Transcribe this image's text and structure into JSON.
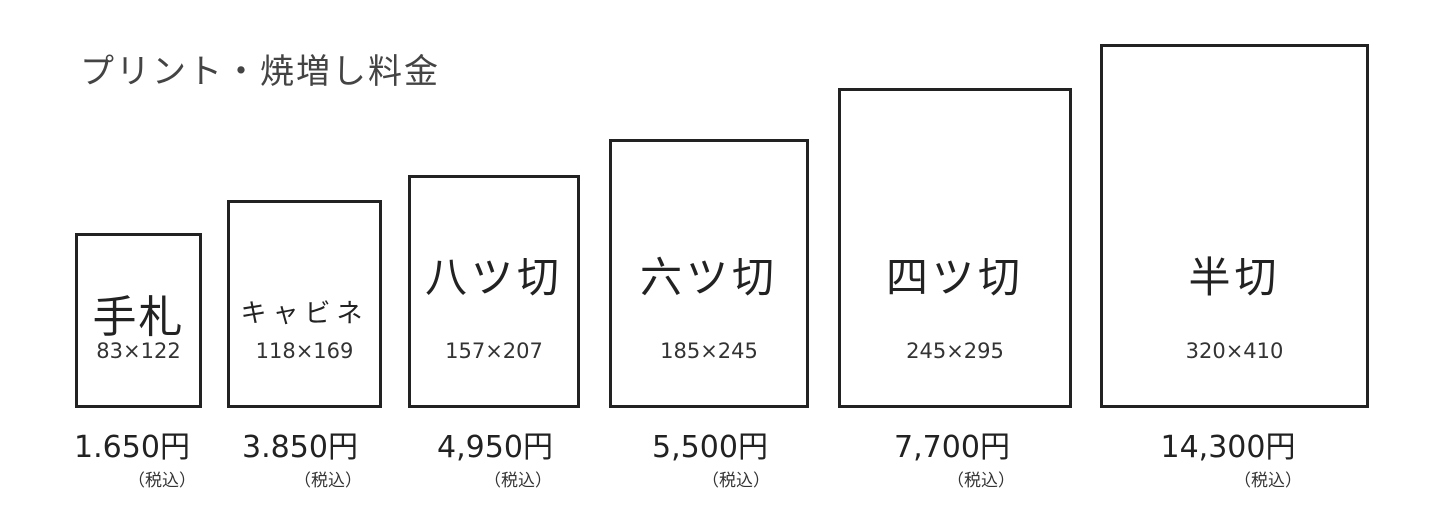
{
  "title": "プリント・焼増し料金",
  "items": [
    {
      "name": "手札",
      "size": "83×122",
      "price": "1.650円",
      "tax": "（税込）"
    },
    {
      "name": "キャビネ",
      "size": "118×169",
      "price": "3.850円",
      "tax": "（税込）"
    },
    {
      "name": "八ツ切",
      "size": "157×207",
      "price": "4,950円",
      "tax": "（税込）"
    },
    {
      "name": "六ツ切",
      "size": "185×245",
      "price": "5,500円",
      "tax": "（税込）"
    },
    {
      "name": "四ツ切",
      "size": "245×295",
      "price": "7,700円",
      "tax": "（税込）"
    },
    {
      "name": "半切",
      "size": "320×410",
      "price": "14,300円",
      "tax": "（税込）"
    }
  ]
}
